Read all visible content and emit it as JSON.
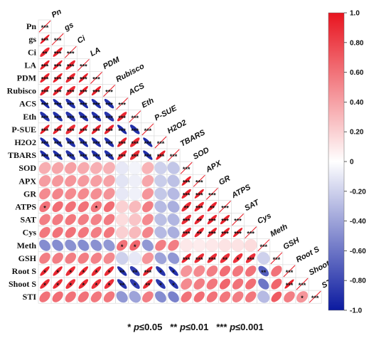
{
  "chart_data": {
    "type": "heatmap",
    "subtype": "correlation-ellipse-lower-triangle",
    "variables": [
      "Pn",
      "gs",
      "Ci",
      "LA",
      "PDM",
      "Rubisco",
      "ACS",
      "Eth",
      "P-SUE",
      "H2O2",
      "TBARS",
      "SOD",
      "APX",
      "GR",
      "ATPS",
      "SAT",
      "Cys",
      "Meth",
      "GSH",
      "Root S",
      "Shoot S",
      "STI"
    ],
    "rows": [
      [
        "Pn"
      ],
      [
        "gs"
      ],
      [
        "Ci"
      ],
      [
        "LA"
      ],
      [
        "PDM"
      ],
      [
        "Rubisco"
      ],
      [
        "ACS"
      ],
      [
        "Eth"
      ],
      [
        "P-SUE"
      ],
      [
        "H2O2"
      ],
      [
        "TBARS"
      ],
      [
        "SOD"
      ],
      [
        "APX"
      ],
      [
        "GR"
      ],
      [
        "ATPS"
      ],
      [
        "SAT"
      ],
      [
        "Cys"
      ],
      [
        "Meth"
      ],
      [
        "GSH"
      ],
      [
        "Root S"
      ],
      [
        "Shoot S"
      ],
      [
        "STI"
      ]
    ],
    "matrix": [
      [
        1
      ],
      [
        0.97,
        1
      ],
      [
        0.92,
        0.94,
        1
      ],
      [
        0.95,
        0.96,
        0.93,
        1
      ],
      [
        0.94,
        0.95,
        0.92,
        0.96,
        1
      ],
      [
        0.93,
        0.94,
        0.91,
        0.95,
        0.95,
        1
      ],
      [
        -0.94,
        -0.93,
        -0.9,
        -0.93,
        -0.92,
        -0.91,
        1
      ],
      [
        -0.9,
        -0.9,
        -0.88,
        -0.9,
        -0.9,
        -0.88,
        0.92,
        1
      ],
      [
        0.95,
        0.94,
        0.9,
        0.95,
        0.94,
        0.93,
        -0.93,
        -0.9,
        1
      ],
      [
        -0.93,
        -0.93,
        -0.9,
        -0.93,
        -0.92,
        -0.91,
        0.93,
        0.9,
        -0.93,
        1
      ],
      [
        -0.92,
        -0.92,
        -0.89,
        -0.92,
        -0.91,
        -0.9,
        0.92,
        0.9,
        -0.92,
        0.94,
        1
      ],
      [
        0.35,
        0.38,
        0.4,
        0.36,
        0.34,
        0.33,
        -0.1,
        -0.05,
        0.32,
        -0.2,
        -0.25,
        1
      ],
      [
        0.42,
        0.44,
        0.45,
        0.43,
        0.41,
        0.4,
        -0.12,
        -0.07,
        0.38,
        -0.22,
        -0.27,
        0.95,
        1
      ],
      [
        0.5,
        0.52,
        0.5,
        0.5,
        0.48,
        0.46,
        -0.1,
        -0.06,
        0.45,
        -0.24,
        -0.3,
        0.93,
        0.95,
        1
      ],
      [
        0.6,
        0.62,
        0.6,
        0.6,
        0.58,
        0.62,
        0.2,
        0.3,
        0.55,
        -0.3,
        -0.35,
        0.9,
        0.92,
        0.93,
        1
      ],
      [
        0.55,
        0.56,
        0.58,
        0.55,
        0.53,
        0.56,
        0.15,
        0.25,
        0.5,
        -0.28,
        -0.32,
        0.9,
        0.92,
        0.93,
        0.94,
        1
      ],
      [
        0.58,
        0.6,
        0.6,
        0.58,
        0.55,
        0.58,
        0.2,
        0.3,
        0.52,
        -0.3,
        -0.35,
        0.9,
        0.92,
        0.93,
        0.94,
        0.95,
        1
      ],
      [
        -0.5,
        -0.5,
        -0.48,
        -0.5,
        -0.48,
        -0.45,
        0.6,
        0.65,
        -0.45,
        0.55,
        0.55,
        0.1,
        0.08,
        0.1,
        0.12,
        0.12,
        0.15,
        1
      ],
      [
        0.55,
        0.55,
        0.55,
        0.55,
        0.53,
        0.5,
        -0.2,
        -0.1,
        0.45,
        -0.4,
        -0.45,
        0.92,
        0.9,
        0.9,
        0.88,
        0.88,
        0.88,
        -0.2,
        1
      ],
      [
        0.92,
        0.92,
        0.9,
        0.92,
        0.9,
        0.9,
        -0.9,
        -0.85,
        0.92,
        -0.88,
        -0.9,
        0.45,
        0.5,
        0.55,
        0.62,
        0.58,
        0.6,
        -0.7,
        0.6,
        1
      ],
      [
        0.9,
        0.9,
        0.88,
        0.9,
        0.88,
        0.88,
        -0.88,
        -0.85,
        0.9,
        -0.87,
        -0.88,
        0.5,
        0.55,
        0.58,
        0.65,
        0.6,
        0.62,
        -0.6,
        0.65,
        0.95,
        1
      ],
      [
        0.6,
        0.62,
        0.6,
        0.6,
        0.58,
        0.58,
        -0.45,
        -0.4,
        0.55,
        -0.5,
        -0.55,
        0.6,
        0.62,
        0.6,
        0.58,
        0.55,
        0.58,
        -0.3,
        0.7,
        0.55,
        0.45,
        1
      ]
    ],
    "significance": [
      [
        "***"
      ],
      [
        "***",
        "***"
      ],
      [
        "**",
        "***",
        "***"
      ],
      [
        "***",
        "***",
        "***",
        "***"
      ],
      [
        "***",
        "***",
        "***",
        "***",
        "***"
      ],
      [
        "***",
        "***",
        "***",
        "***",
        "***",
        "***"
      ],
      [
        "***",
        "***",
        "***",
        "***",
        "***",
        "***",
        "***"
      ],
      [
        "***",
        "***",
        "***",
        "***",
        "***",
        "***",
        "***",
        "***"
      ],
      [
        "***",
        "***",
        "***",
        "***",
        "***",
        "***",
        "***",
        "***",
        "***"
      ],
      [
        "***",
        "***",
        "***",
        "***",
        "***",
        "***",
        "***",
        "***",
        "***",
        "***"
      ],
      [
        "***",
        "***",
        "***",
        "***",
        "***",
        "***",
        "***",
        "***",
        "***",
        "***",
        "***"
      ],
      [
        "",
        "",
        "",
        "",
        "",
        "",
        "",
        "",
        "",
        "",
        "",
        "***"
      ],
      [
        "",
        "",
        "",
        "",
        "",
        "",
        "",
        "",
        "",
        "",
        "",
        "***",
        "***"
      ],
      [
        "",
        "",
        "",
        "",
        "",
        "",
        "",
        "",
        "",
        "",
        "",
        "***",
        "***",
        "***"
      ],
      [
        "*",
        "",
        "",
        "",
        "*",
        "",
        "",
        "",
        "",
        "",
        "",
        "**",
        "***",
        "**",
        "***"
      ],
      [
        "",
        "",
        "",
        "",
        "",
        "",
        "",
        "",
        "",
        "",
        "",
        "***",
        "**",
        "***",
        "***",
        "***"
      ],
      [
        "",
        "",
        "",
        "",
        "",
        "",
        "",
        "",
        "",
        "",
        "",
        "***",
        "**",
        "***",
        "***",
        "***",
        "***"
      ],
      [
        "",
        "",
        "",
        "",
        "",
        "",
        "*",
        "*",
        "",
        "",
        "",
        "",
        "",
        "",
        "",
        "",
        "",
        "***"
      ],
      [
        "",
        "",
        "",
        "",
        "",
        "",
        "",
        "",
        "",
        "",
        "",
        "***",
        "***",
        "***",
        "**",
        "*",
        "***",
        "",
        "***"
      ],
      [
        "*",
        "*",
        "*",
        "*",
        "*",
        "*",
        "**",
        "**",
        "***",
        "*",
        "*",
        "",
        "",
        "",
        "",
        "",
        "",
        "**",
        "",
        "***"
      ],
      [
        "*",
        "*",
        "*",
        "*",
        "*",
        "*",
        "**",
        "*",
        "**",
        "*",
        "*",
        "",
        "",
        "",
        "",
        "",
        "",
        "",
        "",
        "***",
        "***"
      ],
      [
        "",
        "",
        "",
        "",
        "",
        "",
        "",
        "",
        "",
        "",
        "",
        "",
        "",
        "",
        "",
        "",
        "",
        "",
        "",
        "",
        "*",
        "***"
      ]
    ],
    "colorbar": {
      "range": [
        -1.0,
        1.0
      ],
      "ticks": [
        "1.0",
        "0.80",
        "0.60",
        "0.40",
        "0.20",
        "0",
        "-0.20",
        "-0.40",
        "-0.60",
        "-0.80",
        "-1.0"
      ],
      "colors": {
        "negative": "#0b1aa0",
        "neutral": "#ffffff",
        "positive": "#e8141f"
      }
    },
    "footnote": {
      "items": [
        {
          "stars": "*",
          "p_label": "p",
          "op": "≤",
          "value": "0.05"
        },
        {
          "stars": "**",
          "p_label": "p",
          "op": "≤",
          "value": "0.01"
        },
        {
          "stars": "***",
          "p_label": "p",
          "op": "≤",
          "value": "0.001"
        }
      ]
    }
  }
}
